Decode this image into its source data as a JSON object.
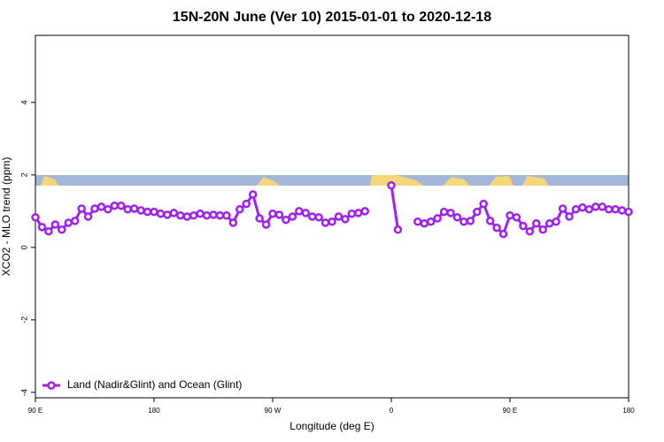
{
  "chart_data": {
    "type": "line",
    "title": "15N-20N June (Ver 10)   2015-01-01 to 2020-12-18",
    "x_label": "Longitude (deg E)",
    "y_label": "XCO2 - MLO trend (ppm)",
    "x": [
      90,
      95,
      100,
      105,
      110,
      115,
      120,
      125,
      130,
      135,
      140,
      145,
      150,
      155,
      160,
      165,
      170,
      175,
      180,
      185,
      190,
      195,
      200,
      205,
      210,
      215,
      220,
      225,
      230,
      235,
      240,
      245,
      250,
      255,
      260,
      265,
      270,
      275,
      280,
      285,
      290,
      295,
      300,
      305,
      310,
      315,
      320,
      325,
      330,
      335,
      340,
      345,
      350,
      355,
      360,
      365,
      370,
      375,
      380,
      385,
      390,
      395,
      400,
      405,
      410,
      415,
      420,
      425,
      430,
      435,
      440,
      445,
      450,
      455,
      460,
      465,
      470,
      475,
      480,
      485,
      490,
      495,
      500,
      505,
      510,
      515,
      520,
      525,
      530,
      535,
      540
    ],
    "series": [
      {
        "name": "Land (Nadir&Glint) and Ocean (Glint)",
        "color": "#a020f0",
        "values": [
          0.83,
          0.56,
          0.44,
          0.63,
          0.49,
          0.68,
          0.73,
          1.07,
          0.85,
          1.07,
          1.12,
          1.05,
          1.15,
          1.15,
          1.05,
          1.07,
          1.02,
          0.98,
          0.98,
          0.93,
          0.9,
          0.95,
          0.88,
          0.85,
          0.88,
          0.93,
          0.88,
          0.9,
          0.88,
          0.88,
          0.68,
          1.05,
          1.2,
          1.46,
          0.8,
          0.63,
          0.93,
          0.9,
          0.76,
          0.85,
          1.0,
          0.95,
          0.85,
          0.83,
          0.68,
          0.71,
          0.85,
          0.78,
          0.93,
          0.95,
          1.0,
          null,
          null,
          null,
          1.71,
          0.49,
          null,
          null,
          0.71,
          0.66,
          0.71,
          0.8,
          0.98,
          0.95,
          0.83,
          0.71,
          0.73,
          0.98,
          1.2,
          0.73,
          0.54,
          0.37,
          0.88,
          0.83,
          0.59,
          0.44,
          0.66,
          0.49,
          0.66,
          0.71,
          1.07,
          0.85,
          1.05,
          1.1,
          1.05,
          1.12,
          1.12,
          1.05,
          1.05,
          1.02,
          0.98
        ]
      }
    ],
    "xlim": [
      90,
      540
    ],
    "xticks": [
      {
        "value": 90,
        "label": "90 E"
      },
      180,
      {
        "value": 270,
        "label": "90 W"
      },
      {
        "value": 360,
        "label": "0"
      },
      {
        "value": 450,
        "label": "90 E"
      },
      {
        "value": 540,
        "label": "180"
      }
    ],
    "ylim": [
      -4.15,
      5.85
    ],
    "yticks": [
      -4,
      -2,
      0,
      2,
      4
    ],
    "grid": false,
    "legend": "bottom-left"
  }
}
